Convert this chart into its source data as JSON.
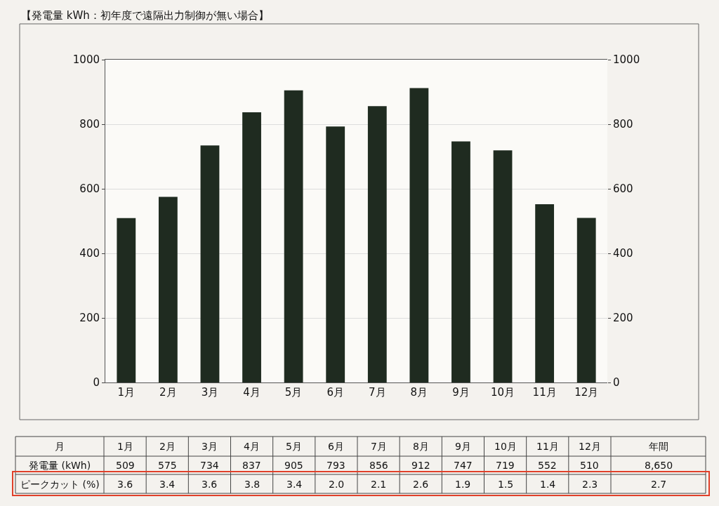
{
  "chart_data": {
    "type": "bar",
    "title": "【発電量 kWh：初年度で遠隔出力制御が無い場合】",
    "categories": [
      "1月",
      "2月",
      "3月",
      "4月",
      "5月",
      "6月",
      "7月",
      "8月",
      "9月",
      "10月",
      "11月",
      "12月"
    ],
    "values": [
      509,
      575,
      734,
      837,
      905,
      793,
      856,
      912,
      747,
      719,
      552,
      510
    ],
    "color": "#1f2b20",
    "ylim": [
      0,
      1000
    ],
    "yticks": [
      0,
      200,
      400,
      600,
      800,
      1000
    ],
    "y2lim": [
      0,
      1000
    ],
    "y2ticks": [
      0,
      200,
      400,
      600,
      800,
      1000
    ],
    "grid": "y",
    "data_labels": true,
    "legend": false,
    "annotations": [
      "月",
      "年間",
      "発電量 (kWh)",
      "8,650",
      "ピークカット (%)",
      "3.6",
      "3.4",
      "3.6",
      "3.8",
      "3.4",
      "2.0",
      "2.1",
      "2.6",
      "1.9",
      "1.5",
      "1.4",
      "2.3",
      "2.7"
    ]
  }
}
